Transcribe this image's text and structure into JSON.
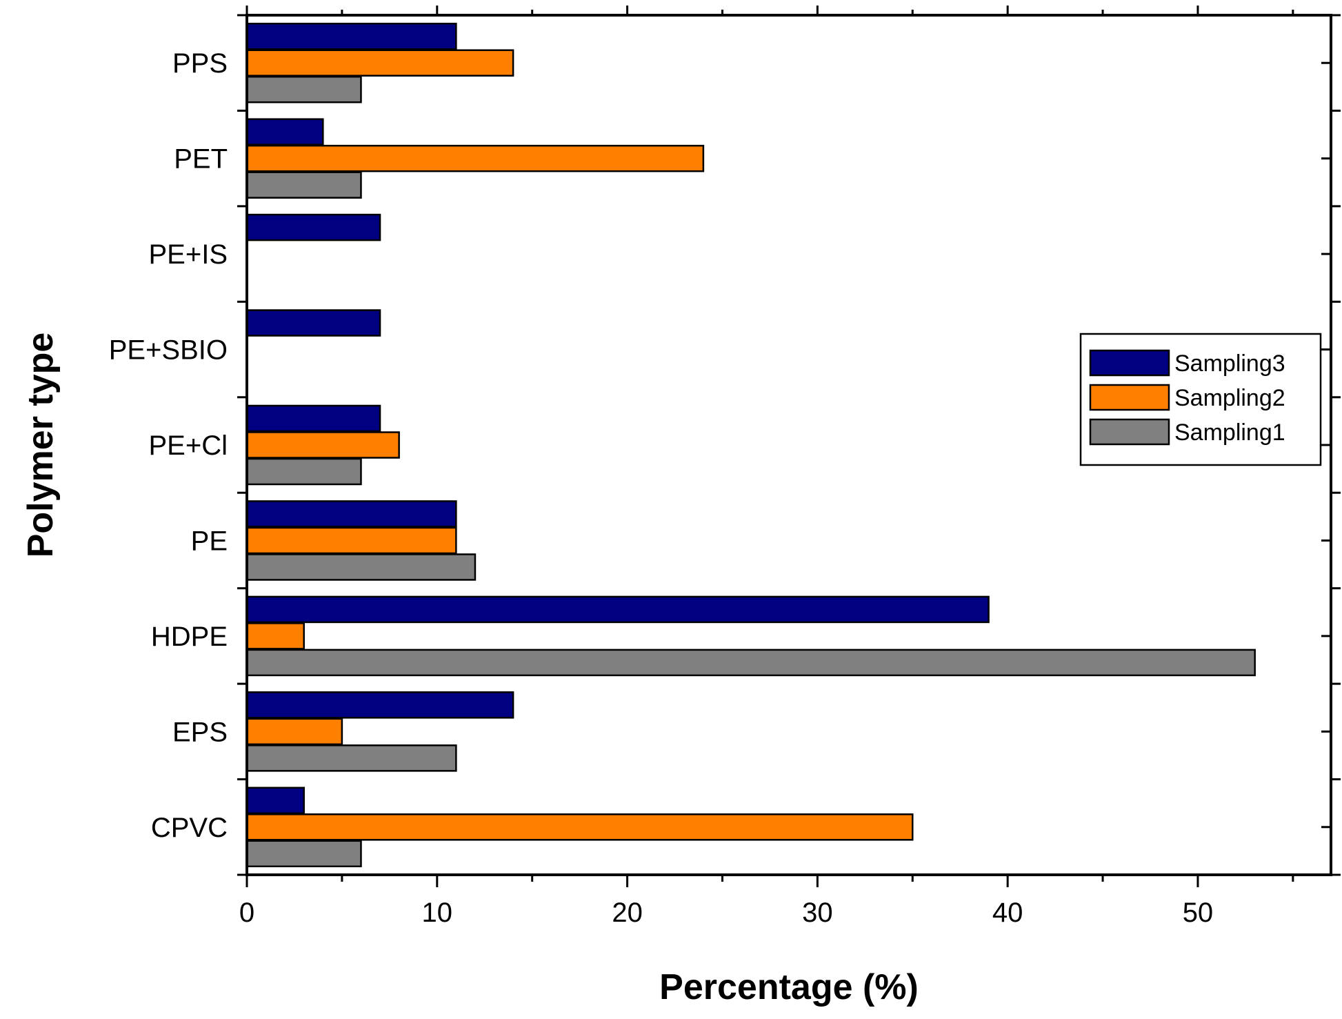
{
  "chart_data": {
    "type": "bar",
    "orientation": "horizontal",
    "title": "",
    "xlabel": "Percentage (%)",
    "ylabel": "Polymer type",
    "xlim": [
      0,
      57
    ],
    "xticks": [
      0,
      10,
      20,
      30,
      40,
      50
    ],
    "grid": false,
    "legend_position": "right",
    "categories": [
      "CPVC",
      "EPS",
      "HDPE",
      "PE",
      "PE+Cl",
      "PE+SBIO",
      "PE+IS",
      "PET",
      "PPS"
    ],
    "series": [
      {
        "name": "Sampling3",
        "color": "#000080",
        "values": [
          3,
          14,
          39,
          11,
          7,
          7,
          7,
          4,
          11
        ]
      },
      {
        "name": "Sampling2",
        "color": "#ff8000",
        "values": [
          35,
          5,
          3,
          11,
          8,
          0,
          0,
          24,
          14
        ]
      },
      {
        "name": "Sampling1",
        "color": "#808080",
        "values": [
          6,
          11,
          53,
          12,
          6,
          0,
          0,
          6,
          6
        ]
      }
    ]
  }
}
